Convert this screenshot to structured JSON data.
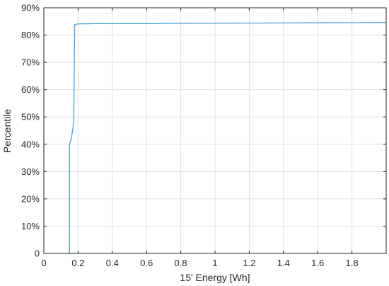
{
  "chart_data": {
    "type": "line",
    "title": "",
    "xlabel": "15' Energy [Wh]",
    "ylabel": "Percentile",
    "xlim": [
      0,
      2.0
    ],
    "ylim": [
      0,
      90
    ],
    "xticks": [
      0,
      0.2,
      0.4,
      0.6,
      0.8,
      1.0,
      1.2,
      1.4,
      1.6,
      1.8
    ],
    "xtick_labels": [
      "0",
      "0.2",
      "0.4",
      "0.6",
      "0.8",
      "1",
      "1.2",
      "1.4",
      "1.6",
      "1.8"
    ],
    "yticks": [
      0,
      10,
      20,
      30,
      40,
      50,
      60,
      70,
      80,
      90
    ],
    "ytick_labels": [
      "0",
      "10%",
      "20%",
      "30%",
      "40%",
      "50%",
      "60%",
      "70%",
      "80%",
      "90%"
    ],
    "grid": true,
    "box": true,
    "series": [
      {
        "color": "#4a9fd6",
        "x": [
          0.15,
          0.15,
          0.155,
          0.16,
          0.165,
          0.17,
          0.175,
          0.18,
          0.18,
          0.19,
          0.2,
          0.3,
          0.6,
          0.8,
          1.2,
          1.6,
          2.0
        ],
        "y": [
          0,
          40,
          41,
          42,
          44,
          46,
          49,
          83.6,
          83.8,
          84.0,
          84.1,
          84.2,
          84.2,
          84.3,
          84.4,
          84.5,
          84.6
        ]
      }
    ]
  }
}
